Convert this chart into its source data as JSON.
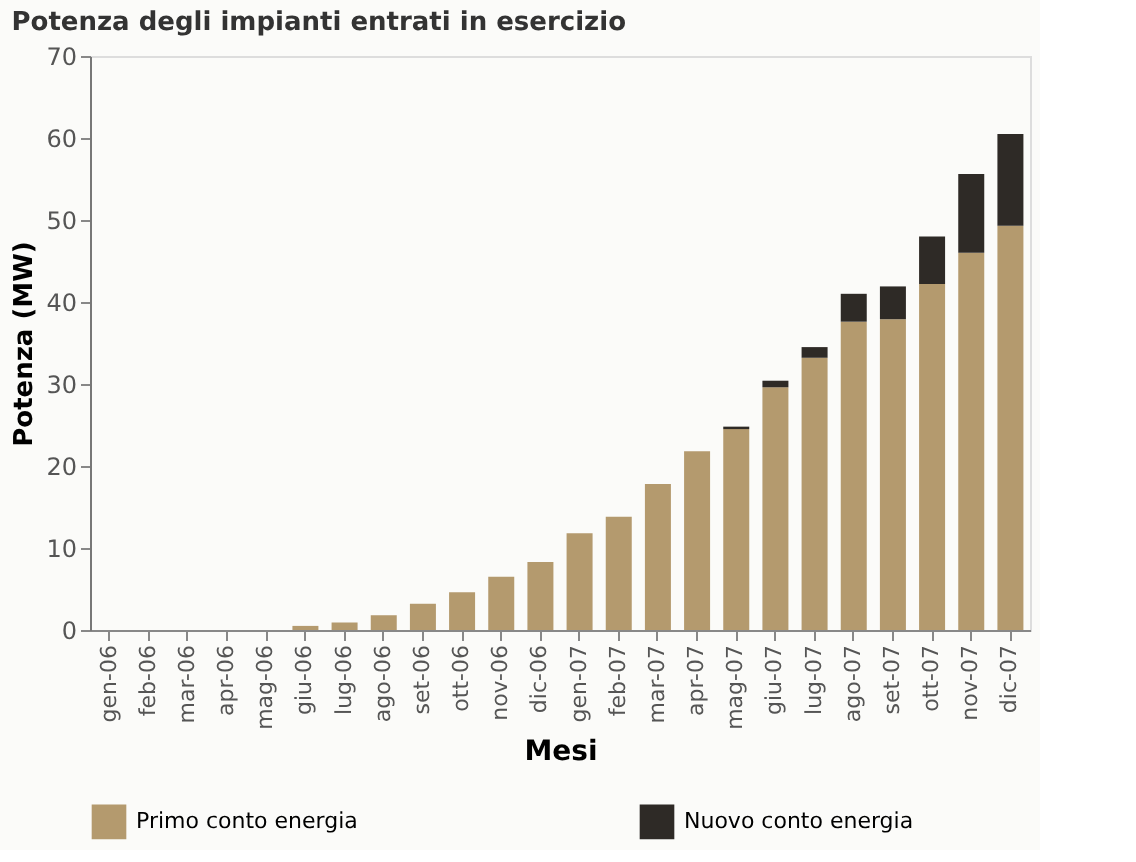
{
  "chart_data": {
    "type": "bar",
    "title": "Potenza degli impianti entrati in esercizio",
    "xlabel": "Mesi",
    "ylabel": "Potenza (MW)",
    "categories": [
      "gen-06",
      "feb-06",
      "mar-06",
      "apr-06",
      "mag-06",
      "giu-06",
      "lug-06",
      "ago-06",
      "set-06",
      "ott-06",
      "nov-06",
      "dic-06",
      "gen-07",
      "feb-07",
      "mar-07",
      "apr-07",
      "mag-07",
      "giu-07",
      "lug-07",
      "ago-07",
      "set-07",
      "ott-07",
      "nov-07",
      "dic-07"
    ],
    "series": [
      {
        "name": "Primo conto energia",
        "color": "#b49a6e",
        "values": [
          0,
          0,
          0,
          0,
          0,
          0.5,
          0.9,
          1.8,
          3.2,
          4.6,
          6.5,
          8.3,
          11.8,
          13.8,
          17.8,
          21.8,
          24.5,
          29.6,
          33.2,
          37.6,
          37.9,
          42.2,
          46,
          49.3
        ]
      },
      {
        "name": "Nuovo conto energia",
        "color": "#2e2a26",
        "values": [
          0,
          0,
          0,
          0,
          0,
          0,
          0,
          0,
          0,
          0,
          0,
          0,
          0,
          0,
          0,
          0,
          0.3,
          0.8,
          1.3,
          3.4,
          4,
          5.8,
          9.6,
          11.2
        ]
      }
    ],
    "stacked": true,
    "ylim": [
      0,
      70
    ],
    "yticks": [
      0,
      10,
      20,
      30,
      40,
      50,
      60,
      70
    ],
    "grid": false,
    "legend": "bottom"
  }
}
